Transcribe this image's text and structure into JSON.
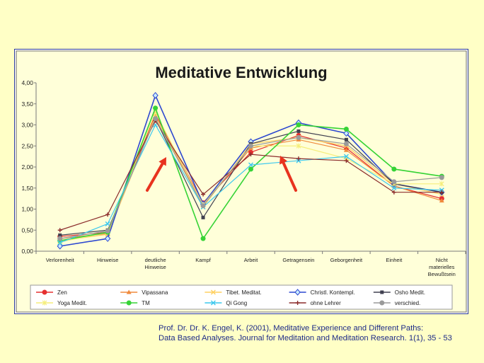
{
  "chart_data": {
    "type": "line",
    "title": "Meditative Entwicklung",
    "xlabel": "",
    "ylabel": "",
    "ylim": [
      0,
      4
    ],
    "yticks": [
      "0,00",
      "0,50",
      "1,00",
      "1,50",
      "2,00",
      "2,50",
      "3,00",
      "3,50",
      "4,00"
    ],
    "ytick_values": [
      0,
      0.5,
      1,
      1.5,
      2,
      2.5,
      3,
      3.5,
      4
    ],
    "categories": [
      [
        "Verlorenheit"
      ],
      [
        "Hinweise"
      ],
      [
        "deutliche",
        "Hinweise"
      ],
      [
        "Kampf"
      ],
      [
        "Arbeit"
      ],
      [
        "Getragensein"
      ],
      [
        "Geborgenheit"
      ],
      [
        "Einheit"
      ],
      [
        "Nicht",
        "materielles",
        "Bewußtsein"
      ]
    ],
    "grid": false,
    "legend_position": "bottom",
    "series": [
      {
        "name": "Zen",
        "color": "#e53030",
        "marker": "circle",
        "values": [
          0.35,
          0.45,
          3.25,
          1.15,
          2.35,
          2.75,
          2.45,
          1.55,
          1.25
        ]
      },
      {
        "name": "Vipassana",
        "color": "#f08a3c",
        "marker": "triangle",
        "values": [
          0.3,
          0.42,
          3.2,
          1.1,
          2.45,
          2.65,
          2.4,
          1.55,
          1.2
        ]
      },
      {
        "name": "Tibet. Meditat.",
        "color": "#ffd060",
        "marker": "x",
        "values": [
          0.25,
          0.4,
          3.2,
          1.05,
          2.55,
          2.7,
          2.5,
          1.6,
          1.35
        ]
      },
      {
        "name": "Christl. Kontempl.",
        "color": "#2d48d0",
        "marker": "diamond",
        "values": [
          0.12,
          0.3,
          3.7,
          1.12,
          2.6,
          3.05,
          2.8,
          1.6,
          1.4
        ]
      },
      {
        "name": "Osho Medit.",
        "color": "#404050",
        "marker": "square",
        "values": [
          0.38,
          0.5,
          3.15,
          0.8,
          2.55,
          2.85,
          2.65,
          1.6,
          1.4
        ]
      },
      {
        "name": "Yoga Medit.",
        "color": "#f5ee7a",
        "marker": "star",
        "values": [
          0.22,
          0.45,
          3.3,
          1.1,
          2.5,
          2.5,
          2.2,
          1.6,
          1.6
        ]
      },
      {
        "name": "TM",
        "color": "#36d336",
        "marker": "circle",
        "values": [
          0.25,
          0.45,
          3.4,
          0.3,
          1.95,
          3.0,
          2.9,
          1.95,
          1.78
        ]
      },
      {
        "name": "Qi Gong",
        "color": "#3cc8ee",
        "marker": "x",
        "values": [
          0.2,
          0.65,
          3.0,
          1.05,
          2.05,
          2.15,
          2.25,
          1.5,
          1.45
        ]
      },
      {
        "name": "ohne Lehrer",
        "color": "#8b2c2c",
        "marker": "plus",
        "values": [
          0.5,
          0.87,
          3.1,
          1.35,
          2.3,
          2.2,
          2.15,
          1.4,
          1.4
        ]
      },
      {
        "name": "verschied.",
        "color": "#9a9a9a",
        "marker": "circle",
        "values": [
          0.3,
          0.48,
          3.15,
          1.08,
          2.5,
          2.7,
          2.55,
          1.65,
          1.75
        ]
      }
    ],
    "annotations": [
      {
        "type": "arrow",
        "color": "#e8331e",
        "near_category": "deutliche Hinweise"
      },
      {
        "type": "arrow",
        "color": "#e8331e",
        "near_category": "Getragensein"
      }
    ]
  },
  "citation": {
    "line1": "Prof. Dr. Dr. K. Engel, K. (2001), Meditative Experience and Different Paths:",
    "line2": "Data Based Analyses. Journal for Meditation and Meditation Research. 1(1), 35 - 53"
  }
}
